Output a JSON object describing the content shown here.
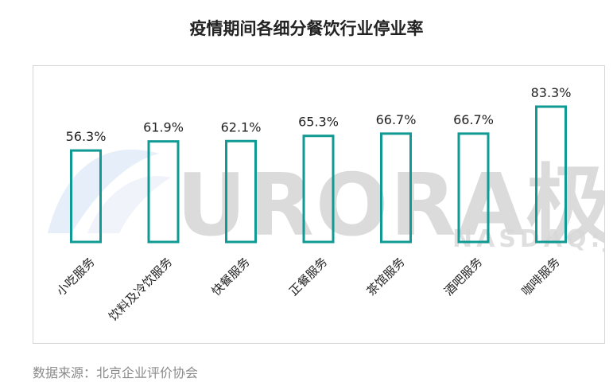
{
  "header": {
    "title": "疫情期间各细分餐饮行业停业率"
  },
  "watermark": {
    "text": "URORA极光",
    "sub": "NASDAQ:JG"
  },
  "source": "数据来源：北京企业评价协会",
  "colors": {
    "bar_stroke": "#0f9a93",
    "text": "#222222",
    "source": "#8a8a8a"
  },
  "chart_data": {
    "type": "bar",
    "title": "疫情期间各细分餐饮行业停业率",
    "categories": [
      "小吃服务",
      "饮料及冷饮服务",
      "快餐服务",
      "正餐服务",
      "茶馆服务",
      "酒吧服务",
      "咖啡服务"
    ],
    "values": [
      56.3,
      61.9,
      62.1,
      65.3,
      66.7,
      66.7,
      83.3
    ],
    "labels": [
      "56.3%",
      "61.9%",
      "62.1%",
      "65.3%",
      "66.7%",
      "66.7%",
      "83.3%"
    ],
    "unit": "%",
    "ylim": [
      0,
      100
    ],
    "grid": false,
    "legend": "none"
  }
}
